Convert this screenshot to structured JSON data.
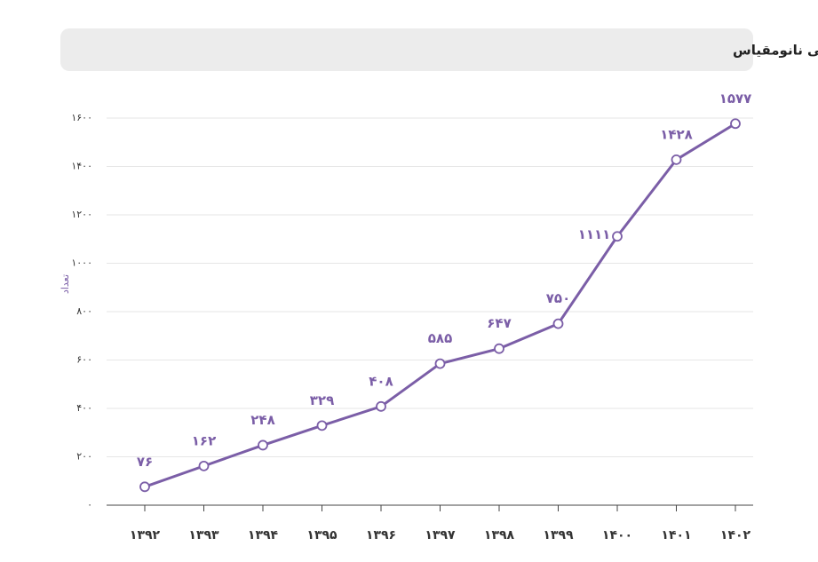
{
  "chart_data": {
    "type": "line",
    "title": "روند تعداد محصولات نانو دارای گواهی نانومقیاس",
    "y_label": "تعداد",
    "categories": [
      "۱۳۹۲",
      "۱۳۹۳",
      "۱۳۹۴",
      "۱۳۹۵",
      "۱۳۹۶",
      "۱۳۹۷",
      "۱۳۹۸",
      "۱۳۹۹",
      "۱۴۰۰",
      "۱۴۰۱",
      "۱۴۰۲"
    ],
    "values": [
      76,
      162,
      248,
      329,
      408,
      585,
      647,
      750,
      1111,
      1428,
      1577
    ],
    "value_labels": [
      "۷۶",
      "۱۶۲",
      "۲۴۸",
      "۳۲۹",
      "۴۰۸",
      "۵۸۵",
      "۶۴۷",
      "۷۵۰",
      "۱۱۱۱",
      "۱۴۲۸",
      "۱۵۷۷"
    ],
    "color": "#7b5ea7",
    "ylim": [
      0,
      1600
    ],
    "yticks": [
      {
        "value": 0,
        "label": "۰"
      },
      {
        "value": 200,
        "label": "۲۰۰"
      },
      {
        "value": 400,
        "label": "۴۰۰"
      },
      {
        "value": 600,
        "label": "۶۰۰"
      },
      {
        "value": 800,
        "label": "۸۰۰"
      },
      {
        "value": 1000,
        "label": "۱۰۰۰"
      },
      {
        "value": 1200,
        "label": "۱۲۰۰"
      },
      {
        "value": 1400,
        "label": "۱۴۰۰"
      },
      {
        "value": 1600,
        "label": "۱۶۰۰"
      }
    ],
    "grid": true
  }
}
